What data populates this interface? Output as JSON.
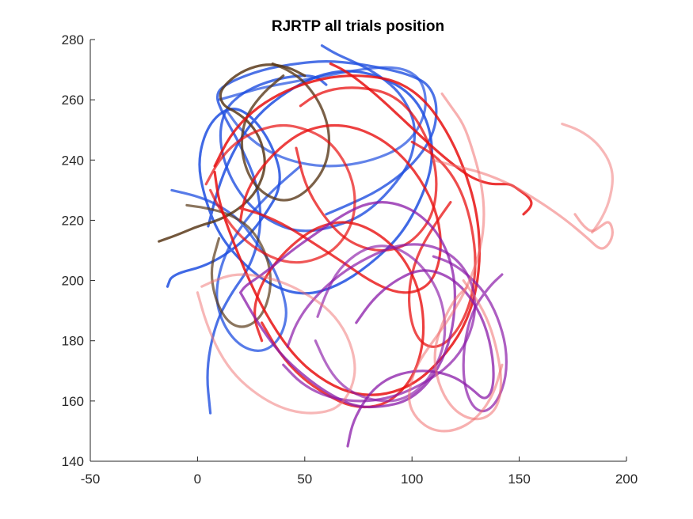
{
  "chart_data": {
    "type": "line",
    "title": "RJRTP all trials position",
    "xlabel": "",
    "ylabel": "",
    "xlim": [
      -50,
      200
    ],
    "ylim": [
      140,
      280
    ],
    "x_ticks": [
      -50,
      0,
      50,
      100,
      150,
      200
    ],
    "y_ticks": [
      140,
      160,
      180,
      200,
      220,
      240,
      260,
      280
    ],
    "x_tick_labels": [
      "-50",
      "0",
      "50",
      "100",
      "150",
      "200"
    ],
    "y_tick_labels": [
      "140",
      "160",
      "180",
      "200",
      "220",
      "240",
      "260",
      "280"
    ],
    "grid": false,
    "legend": "none",
    "colors": {
      "blue": "#1f4fe0",
      "brown": "#5a3a1a",
      "red": "#e81010",
      "purple": "#8a1aa8",
      "pink": "#f07070"
    },
    "series": [
      {
        "color": "blue",
        "opacity": 0.85,
        "x": [
          -14,
          -12,
          5,
          20,
          30,
          40,
          35,
          25,
          15,
          5,
          0,
          3,
          10,
          22,
          35,
          50,
          65,
          80,
          95,
          105,
          110,
          108,
          100,
          85,
          70,
          55,
          40,
          28,
          18,
          10,
          5
        ],
        "y": [
          198,
          202,
          205,
          212,
          220,
          232,
          245,
          255,
          258,
          252,
          240,
          228,
          215,
          205,
          198,
          195,
          198,
          205,
          215,
          228,
          240,
          252,
          262,
          268,
          270,
          268,
          262,
          255,
          245,
          232,
          218
        ]
      },
      {
        "color": "blue",
        "opacity": 0.8,
        "x": [
          6,
          4,
          8,
          15,
          25,
          30,
          28,
          20,
          12,
          8,
          15,
          30,
          45,
          60,
          75,
          90,
          100,
          108,
          112,
          110,
          100,
          85,
          70,
          60
        ],
        "y": [
          156,
          170,
          185,
          195,
          205,
          218,
          232,
          245,
          255,
          262,
          266,
          270,
          272,
          273,
          272,
          270,
          268,
          265,
          258,
          248,
          238,
          230,
          225,
          222
        ]
      },
      {
        "color": "blue",
        "opacity": 0.8,
        "x": [
          58,
          65,
          75,
          85,
          95,
          102,
          100,
          90,
          78,
          65,
          50,
          38,
          25,
          15,
          10,
          12,
          20,
          32,
          45,
          55,
          60
        ],
        "y": [
          278,
          275,
          272,
          268,
          262,
          252,
          240,
          230,
          222,
          218,
          216,
          218,
          224,
          234,
          246,
          256,
          262,
          266,
          268,
          268,
          265
        ]
      },
      {
        "color": "blue",
        "opacity": 0.75,
        "x": [
          -12,
          0,
          10,
          20,
          28,
          35,
          40,
          42,
          38,
          30,
          20,
          12,
          8,
          12,
          22,
          35,
          48
        ],
        "y": [
          230,
          228,
          225,
          220,
          212,
          205,
          196,
          188,
          180,
          176,
          178,
          185,
          195,
          208,
          220,
          230,
          238
        ]
      },
      {
        "color": "blue",
        "opacity": 0.7,
        "x": [
          10,
          20,
          30,
          45,
          60,
          75,
          88,
          98,
          105,
          107,
          103,
          95,
          82,
          68,
          55,
          42,
          30,
          20,
          14
        ],
        "y": [
          260,
          262,
          264,
          266,
          268,
          270,
          271,
          270,
          266,
          258,
          250,
          244,
          240,
          238,
          238,
          240,
          244,
          250,
          256
        ]
      },
      {
        "color": "brown",
        "opacity": 0.85,
        "x": [
          -18,
          -10,
          0,
          10,
          20,
          28,
          32,
          30,
          25,
          18,
          12,
          10,
          14,
          22,
          32,
          42,
          50
        ],
        "y": [
          213,
          215,
          218,
          220,
          224,
          230,
          238,
          246,
          252,
          256,
          258,
          262,
          266,
          270,
          272,
          271,
          268
        ]
      },
      {
        "color": "brown",
        "opacity": 0.8,
        "x": [
          35,
          42,
          50,
          58,
          62,
          60,
          52,
          42,
          32,
          24,
          20,
          22,
          30,
          40
        ],
        "y": [
          272,
          270,
          266,
          258,
          248,
          238,
          230,
          226,
          228,
          234,
          244,
          254,
          262,
          268
        ]
      },
      {
        "color": "brown",
        "opacity": 0.7,
        "x": [
          -5,
          5,
          15,
          24,
          30,
          34,
          34,
          30,
          22,
          14,
          8,
          6,
          10
        ],
        "y": [
          225,
          224,
          222,
          218,
          212,
          204,
          196,
          188,
          184,
          186,
          194,
          204,
          214
        ]
      },
      {
        "color": "red",
        "opacity": 0.85,
        "x": [
          8,
          15,
          25,
          38,
          52,
          66,
          80,
          94,
          106,
          116,
          124,
          130,
          132,
          130,
          124,
          114,
          102,
          88,
          74,
          60,
          46,
          34,
          24,
          16,
          10,
          8
        ],
        "y": [
          238,
          248,
          256,
          262,
          266,
          268,
          268,
          266,
          260,
          250,
          238,
          224,
          210,
          196,
          184,
          174,
          166,
          162,
          162,
          166,
          174,
          186,
          200,
          214,
          226,
          236
        ]
      },
      {
        "color": "red",
        "opacity": 0.85,
        "x": [
          62,
          68,
          76,
          86,
          98,
          110,
          120,
          128,
          136,
          142,
          146,
          150,
          154,
          156,
          155,
          152
        ],
        "y": [
          272,
          270,
          266,
          260,
          252,
          244,
          238,
          234,
          232,
          232,
          232,
          230,
          228,
          226,
          224,
          222
        ]
      },
      {
        "color": "red",
        "opacity": 0.8,
        "x": [
          20,
          30,
          42,
          55,
          68,
          80,
          92,
          102,
          110,
          114,
          112,
          104,
          92,
          78,
          64,
          50,
          38,
          28,
          22,
          20
        ],
        "y": [
          224,
          222,
          218,
          212,
          206,
          200,
          196,
          196,
          200,
          210,
          222,
          234,
          244,
          250,
          252,
          250,
          244,
          236,
          228,
          220
        ]
      },
      {
        "color": "red",
        "opacity": 0.8,
        "x": [
          30,
          38,
          48,
          60,
          72,
          84,
          94,
          102,
          106,
          104,
          96,
          84,
          70,
          56,
          44,
          34,
          28,
          26,
          30
        ],
        "y": [
          186,
          176,
          168,
          162,
          158,
          158,
          162,
          170,
          182,
          196,
          208,
          216,
          220,
          218,
          212,
          204,
          196,
          188,
          180
        ]
      },
      {
        "color": "red",
        "opacity": 0.75,
        "x": [
          100,
          110,
          118,
          124,
          128,
          130,
          128,
          122,
          114,
          106,
          100,
          98,
          102,
          110,
          118
        ],
        "y": [
          246,
          242,
          236,
          228,
          218,
          206,
          194,
          184,
          178,
          178,
          184,
          196,
          208,
          218,
          226
        ]
      },
      {
        "color": "red",
        "opacity": 0.7,
        "x": [
          4,
          10,
          18,
          28,
          40,
          52,
          62,
          70,
          74,
          72,
          64,
          52,
          40,
          28,
          18,
          10,
          6
        ],
        "y": [
          232,
          240,
          246,
          250,
          252,
          250,
          246,
          238,
          228,
          218,
          210,
          206,
          206,
          210,
          216,
          224,
          230
        ]
      },
      {
        "color": "red",
        "opacity": 0.75,
        "x": [
          48,
          56,
          66,
          78,
          90,
          100,
          108,
          112,
          110,
          102,
          92,
          80,
          68,
          58,
          50,
          46
        ],
        "y": [
          258,
          262,
          264,
          264,
          262,
          256,
          246,
          234,
          222,
          214,
          210,
          210,
          214,
          222,
          232,
          244
        ]
      },
      {
        "color": "purple",
        "opacity": 0.75,
        "x": [
          20,
          28,
          38,
          50,
          62,
          74,
          86,
          98,
          108,
          116,
          120,
          120,
          114,
          104,
          92,
          80,
          68,
          56,
          44,
          34,
          26,
          22,
          20
        ],
        "y": [
          196,
          186,
          176,
          168,
          162,
          158,
          158,
          160,
          166,
          176,
          188,
          202,
          214,
          222,
          226,
          226,
          222,
          216,
          210,
          204,
          200,
          198,
          196
        ]
      },
      {
        "color": "purple",
        "opacity": 0.75,
        "x": [
          70,
          72,
          76,
          82,
          90,
          100,
          110,
          120,
          128,
          134,
          138,
          138,
          134,
          126,
          116,
          104,
          92,
          82,
          74
        ],
        "y": [
          145,
          152,
          158,
          164,
          168,
          170,
          170,
          168,
          164,
          160,
          164,
          174,
          186,
          196,
          202,
          204,
          200,
          194,
          186
        ]
      },
      {
        "color": "purple",
        "opacity": 0.7,
        "x": [
          40,
          48,
          58,
          70,
          82,
          94,
          106,
          118,
          126,
          130,
          128,
          120,
          108,
          94,
          80,
          66,
          54,
          46,
          42
        ],
        "y": [
          172,
          166,
          162,
          160,
          160,
          162,
          166,
          172,
          180,
          190,
          200,
          208,
          212,
          212,
          208,
          202,
          194,
          186,
          178
        ]
      },
      {
        "color": "purple",
        "opacity": 0.7,
        "x": [
          110,
          118,
          126,
          134,
          140,
          144,
          144,
          140,
          134,
          128,
          124,
          124,
          128,
          136,
          142
        ],
        "y": [
          208,
          206,
          202,
          196,
          188,
          178,
          168,
          160,
          156,
          158,
          166,
          178,
          190,
          198,
          202
        ]
      },
      {
        "color": "purple",
        "opacity": 0.65,
        "x": [
          55,
          60,
          66,
          74,
          84,
          94,
          104,
          112,
          116,
          114,
          106,
          96,
          86,
          76,
          66,
          60,
          56
        ],
        "y": [
          180,
          172,
          166,
          162,
          160,
          160,
          164,
          172,
          182,
          194,
          204,
          210,
          212,
          210,
          204,
          196,
          188
        ]
      },
      {
        "color": "pink",
        "opacity": 0.55,
        "x": [
          114,
          118,
          124,
          128,
          132,
          134,
          132,
          126,
          118,
          110,
          104,
          100,
          98,
          102,
          110,
          120,
          130,
          138,
          142
        ],
        "y": [
          262,
          258,
          252,
          244,
          234,
          222,
          210,
          198,
          188,
          180,
          174,
          168,
          160,
          154,
          150,
          150,
          154,
          162,
          172
        ]
      },
      {
        "color": "pink",
        "opacity": 0.55,
        "x": [
          110,
          120,
          132,
          146,
          160,
          172,
          182,
          188,
          192,
          194,
          192,
          188,
          184,
          180,
          176
        ],
        "y": [
          240,
          238,
          236,
          232,
          226,
          220,
          214,
          210,
          212,
          216,
          220,
          218,
          216,
          218,
          222
        ]
      },
      {
        "color": "pink",
        "opacity": 0.5,
        "x": [
          170,
          178,
          186,
          192,
          194,
          192,
          188,
          184
        ],
        "y": [
          252,
          250,
          246,
          240,
          234,
          226,
          220,
          216
        ]
      },
      {
        "color": "pink",
        "opacity": 0.5,
        "x": [
          0,
          4,
          10,
          18,
          28,
          38,
          48,
          58,
          66,
          72,
          74,
          70,
          62,
          50,
          38,
          26,
          16,
          8,
          2
        ],
        "y": [
          196,
          186,
          176,
          168,
          162,
          158,
          156,
          156,
          158,
          164,
          172,
          182,
          190,
          196,
          200,
          202,
          202,
          200,
          198
        ]
      },
      {
        "color": "pink",
        "opacity": 0.55,
        "x": [
          124,
          130,
          136,
          140,
          142,
          140,
          134,
          126,
          118,
          112,
          110,
          114,
          120,
          126
        ],
        "y": [
          200,
          194,
          186,
          176,
          166,
          158,
          154,
          154,
          158,
          166,
          176,
          186,
          194,
          198
        ]
      }
    ]
  }
}
